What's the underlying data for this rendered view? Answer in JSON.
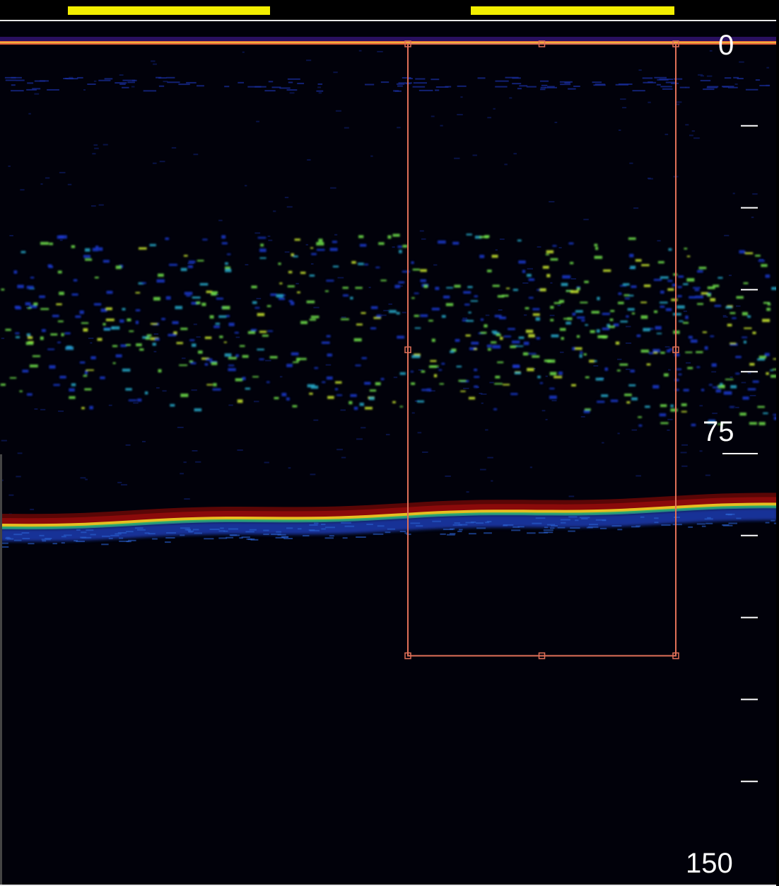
{
  "topbar": {
    "bars": [
      {
        "name": "range-indicator-left"
      },
      {
        "name": "range-indicator-right"
      }
    ],
    "bar_color": "#f2ee00"
  },
  "echogram": {
    "depth_axis": {
      "min": 0,
      "max": 150,
      "labels": [
        {
          "value": 0,
          "text": "0"
        },
        {
          "value": 75,
          "text": "75"
        },
        {
          "value": 150,
          "text": "150"
        }
      ],
      "minor_ticks": [
        15,
        30,
        45,
        60,
        75,
        90,
        105,
        120,
        135
      ]
    },
    "colors": {
      "background": "#01010a",
      "surface_line": "#e8643a",
      "bottom_strong": "#8a0a0a",
      "bottom_mid": "#e8c020",
      "bottom_weak": "#1a3ab0",
      "school_green": "#6ee04a",
      "school_blue": "#1a3ad0",
      "selection_box": "#e07058"
    },
    "selection_box": {
      "depth_top": 0,
      "depth_bottom": 112
    }
  }
}
